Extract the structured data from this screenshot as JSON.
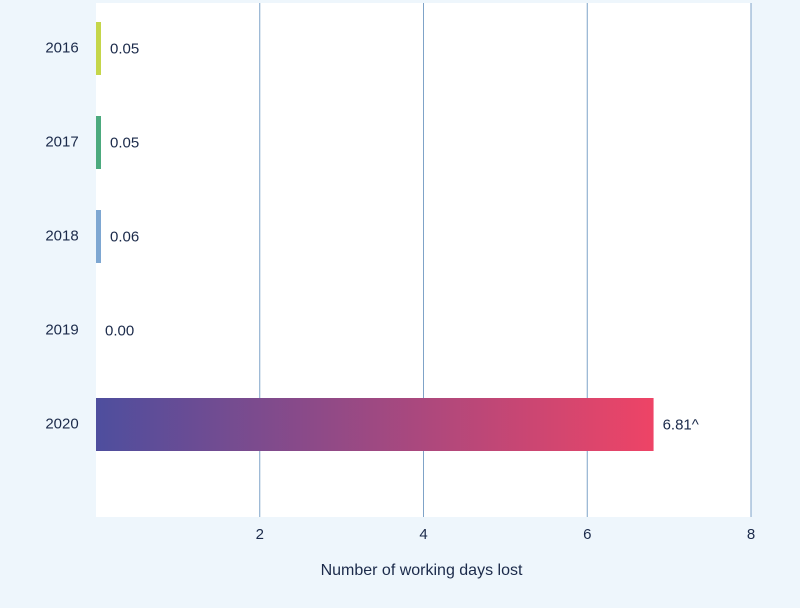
{
  "chart_data": {
    "type": "bar",
    "orientation": "horizontal",
    "categories": [
      "2016",
      "2017",
      "2018",
      "2019",
      "2020"
    ],
    "values": [
      0.05,
      0.05,
      0.06,
      0.0,
      6.81
    ],
    "value_labels": [
      "0.05",
      "0.05",
      "0.06",
      "0.00",
      "6.81^"
    ],
    "bar_colors": [
      "#c5d64a",
      "#4caa7e",
      "#7ea7d2",
      "#cccccc",
      null
    ],
    "highlight_gradient": [
      "#4e4e9e",
      "#ee4466"
    ],
    "xlabel": "Number of working days lost",
    "xlim": [
      0,
      8
    ],
    "xticks": [
      2,
      4,
      6,
      8
    ],
    "xtick_labels": [
      "2",
      "4",
      "6",
      "8"
    ],
    "grid": "vertical",
    "colors": {
      "background": "#eef6fc",
      "plot_background": "#ffffff",
      "gridline": "#7fa3c8",
      "text": "#1b2a4a"
    }
  }
}
